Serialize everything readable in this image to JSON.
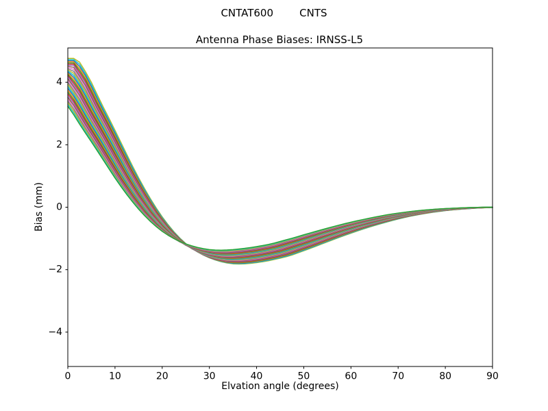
{
  "chart_data": {
    "type": "line",
    "suptitle": "CNTAT600        CNTS",
    "title": "Antenna Phase Biases: IRNSS-L5",
    "xlabel": "Elvation angle (degrees)",
    "ylabel": "Bias (mm)",
    "xlim": [
      0,
      90
    ],
    "ylim": [
      -5.1,
      5.1
    ],
    "grid": false,
    "legend": "none",
    "frame_color": "#000000",
    "xticks": [
      {
        "label": "0",
        "value": 0
      },
      {
        "label": "10",
        "value": 10
      },
      {
        "label": "20",
        "value": 20
      },
      {
        "label": "30",
        "value": 30
      },
      {
        "label": "40",
        "value": 40
      },
      {
        "label": "50",
        "value": 50
      },
      {
        "label": "60",
        "value": 60
      },
      {
        "label": "70",
        "value": 70
      },
      {
        "label": "80",
        "value": 80
      },
      {
        "label": "90",
        "value": 90
      }
    ],
    "yticks": [
      {
        "label": "−4",
        "value": -4
      },
      {
        "label": "−2",
        "value": -2
      },
      {
        "label": "0",
        "value": 0
      },
      {
        "label": "2",
        "value": 2
      },
      {
        "label": "4",
        "value": 4
      }
    ],
    "x_samples_deg": [
      0,
      2.5,
      5,
      7.5,
      10,
      12.5,
      15,
      17.5,
      20,
      22.5,
      25,
      27.5,
      30,
      32.5,
      35,
      37.5,
      40,
      42.5,
      45,
      47.5,
      50,
      52.5,
      55,
      57.5,
      60,
      62.5,
      65,
      67.5,
      70,
      72.5,
      75,
      77.5,
      80,
      82.5,
      85,
      87.5,
      90
    ],
    "center_bias_mm": [
      4.18,
      3.65,
      2.95,
      2.3,
      1.62,
      0.95,
      0.35,
      -0.18,
      -0.62,
      -0.97,
      -1.22,
      -1.4,
      -1.52,
      -1.59,
      -1.6,
      -1.57,
      -1.52,
      -1.45,
      -1.37,
      -1.25,
      -1.13,
      -1.0,
      -0.875,
      -0.755,
      -0.64,
      -0.535,
      -0.44,
      -0.35,
      -0.27,
      -0.205,
      -0.15,
      -0.105,
      -0.07,
      -0.045,
      -0.025,
      -0.01,
      0.0
    ],
    "series": [
      {
        "scale": 1.14,
        "shift_deg": 2.0,
        "color": "#bcbd22"
      },
      {
        "scale": 1.1313,
        "shift_deg": 1.875,
        "color": "#17becf"
      },
      {
        "scale": 1.1225,
        "shift_deg": 1.75,
        "color": "#1f77b4"
      },
      {
        "scale": 1.1138,
        "shift_deg": 1.625,
        "color": "#ff7f0e"
      },
      {
        "scale": 1.105,
        "shift_deg": 1.5,
        "color": "#2ca02c"
      },
      {
        "scale": 1.0963,
        "shift_deg": 1.375,
        "color": "#d62728"
      },
      {
        "scale": 1.0875,
        "shift_deg": 1.25,
        "color": "#9467bd"
      },
      {
        "scale": 1.0788,
        "shift_deg": 1.125,
        "color": "#8c564b"
      },
      {
        "scale": 1.07,
        "shift_deg": 1.0,
        "color": "#e377c2"
      },
      {
        "scale": 1.0613,
        "shift_deg": 0.875,
        "color": "#7f7f7f"
      },
      {
        "scale": 1.0525,
        "shift_deg": 0.75,
        "color": "#bcbd22"
      },
      {
        "scale": 1.0438,
        "shift_deg": 0.625,
        "color": "#17becf"
      },
      {
        "scale": 1.035,
        "shift_deg": 0.5,
        "color": "#1f77b4"
      },
      {
        "scale": 1.0263,
        "shift_deg": 0.375,
        "color": "#ff7f0e"
      },
      {
        "scale": 1.0175,
        "shift_deg": 0.25,
        "color": "#2ca02c"
      },
      {
        "scale": 1.0088,
        "shift_deg": 0.125,
        "color": "#d62728"
      },
      {
        "scale": 1.0,
        "shift_deg": 0.0,
        "color": "#9467bd"
      },
      {
        "scale": 0.9913,
        "shift_deg": -0.125,
        "color": "#8c564b"
      },
      {
        "scale": 0.9825,
        "shift_deg": -0.25,
        "color": "#e377c2"
      },
      {
        "scale": 0.9738,
        "shift_deg": -0.375,
        "color": "#7f7f7f"
      },
      {
        "scale": 0.965,
        "shift_deg": -0.5,
        "color": "#bcbd22"
      },
      {
        "scale": 0.9563,
        "shift_deg": -0.625,
        "color": "#17becf"
      },
      {
        "scale": 0.9475,
        "shift_deg": -0.75,
        "color": "#1f77b4"
      },
      {
        "scale": 0.9388,
        "shift_deg": -0.875,
        "color": "#ff7f0e"
      },
      {
        "scale": 0.93,
        "shift_deg": -1.0,
        "color": "#2ca02c"
      },
      {
        "scale": 0.9213,
        "shift_deg": -1.125,
        "color": "#d62728"
      },
      {
        "scale": 0.9125,
        "shift_deg": -1.25,
        "color": "#9467bd"
      },
      {
        "scale": 0.9038,
        "shift_deg": -1.375,
        "color": "#8c564b"
      },
      {
        "scale": 0.895,
        "shift_deg": -1.5,
        "color": "#e377c2"
      },
      {
        "scale": 0.8863,
        "shift_deg": -1.625,
        "color": "#7f7f7f"
      },
      {
        "scale": 0.8775,
        "shift_deg": -1.75,
        "color": "#bcbd22"
      },
      {
        "scale": 0.8688,
        "shift_deg": -1.875,
        "color": "#17becf"
      },
      {
        "scale": 0.86,
        "shift_deg": -2.0,
        "color": "#2ca02c"
      }
    ]
  }
}
